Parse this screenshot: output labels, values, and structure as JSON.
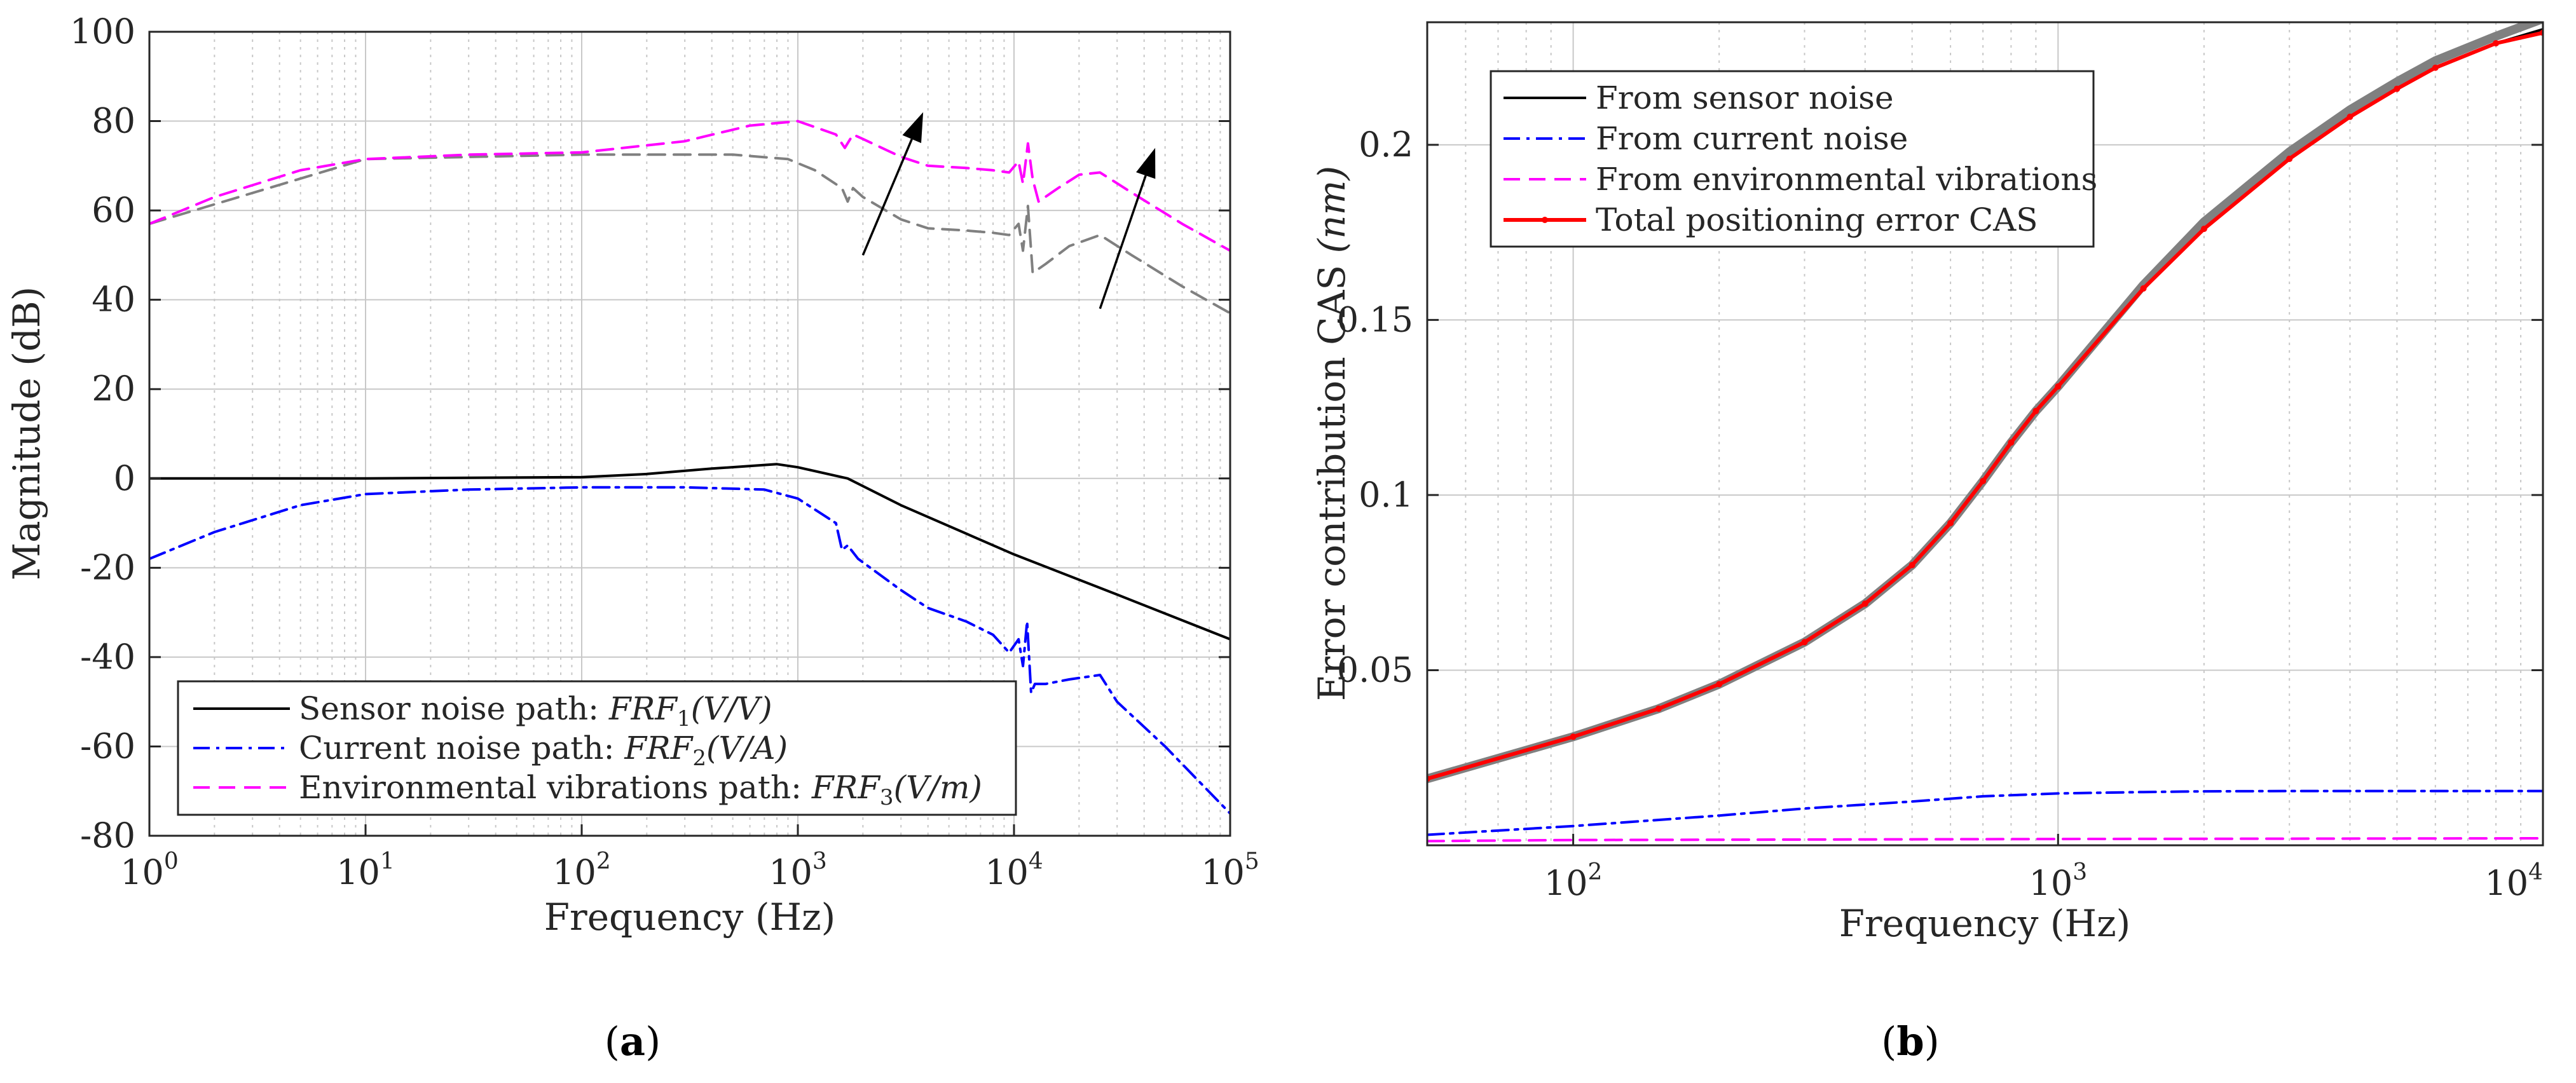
{
  "colors": {
    "sensor": "#000000",
    "current": "#0000ff",
    "environment": "#ff00ff",
    "reference": "#808080",
    "total": "#ff0000",
    "arrow": "#000000",
    "grid": "#c8c8c8",
    "axis": "#262626"
  },
  "chart_data": [
    {
      "id": "a",
      "panel_label": "a",
      "type": "line",
      "title": "",
      "xlabel": "Frequency (Hz)",
      "ylabel": "Magnitude (dB)",
      "xscale": "log",
      "xlim": [
        1,
        100000
      ],
      "ylim": [
        -80,
        100
      ],
      "grid": true,
      "xticks": [
        {
          "base": "10",
          "exp": "0"
        },
        {
          "base": "10",
          "exp": "1"
        },
        {
          "base": "10",
          "exp": "2"
        },
        {
          "base": "10",
          "exp": "3"
        },
        {
          "base": "10",
          "exp": "4"
        },
        {
          "base": "10",
          "exp": "5"
        }
      ],
      "yticks": [
        "-80",
        "-60",
        "-40",
        "-20",
        "0",
        "20",
        "40",
        "60",
        "80",
        "100"
      ],
      "legend_position": "bottom-right",
      "legend": [
        {
          "series": "sensor",
          "text": "Sensor noise path: ",
          "math": "FRF",
          "sub": "1",
          "unit": "(V/V)"
        },
        {
          "series": "current",
          "text": "Current noise path: ",
          "math": "FRF",
          "sub": "2",
          "unit": "(V/A)"
        },
        {
          "series": "environment",
          "text": "Environmental vibrations path: ",
          "math": "FRF",
          "sub": "3",
          "unit": "(V/m)"
        }
      ],
      "series": [
        {
          "key": "sensor",
          "name": "Sensor noise path: FRF1(V/V)",
          "style": "solid",
          "x": [
            1,
            10,
            100,
            200,
            400,
            800,
            1000,
            1700,
            3000,
            10000,
            30000,
            100000
          ],
          "y": [
            0,
            0,
            0.3,
            1,
            2.2,
            3.2,
            2.5,
            0,
            -6,
            -17,
            -26,
            -36
          ]
        },
        {
          "key": "current",
          "name": "Current noise path: FRF2(V/A)",
          "style": "dashdot",
          "x": [
            1,
            2,
            5,
            10,
            30,
            100,
            300,
            700,
            1000,
            1500,
            1600,
            1700,
            1900,
            3000,
            4000,
            6000,
            8000,
            9500,
            10500,
            11000,
            11500,
            12000,
            12500,
            14000,
            18000,
            25000,
            30000,
            50000,
            100000
          ],
          "y": [
            -18,
            -12,
            -6,
            -3.5,
            -2.5,
            -2,
            -2,
            -2.5,
            -4.5,
            -10,
            -16,
            -15,
            -18,
            -25,
            -29,
            -32,
            -35,
            -39,
            -36,
            -42,
            -32,
            -48,
            -46,
            -46,
            -45,
            -44,
            -50,
            -60,
            -75
          ]
        },
        {
          "key": "environment",
          "name": "Environmental vibrations path: FRF3(V/m)",
          "style": "dashed",
          "x": [
            1,
            2,
            5,
            10,
            30,
            100,
            300,
            600,
            1000,
            1500,
            1650,
            1800,
            2000,
            3000,
            4000,
            6000,
            8000,
            9500,
            10500,
            11000,
            11600,
            12200,
            13000,
            16000,
            20000,
            25000,
            35000,
            60000,
            100000
          ],
          "y": [
            57,
            63,
            69,
            71.5,
            72.5,
            73,
            75.5,
            79,
            80,
            77,
            74,
            77,
            76,
            72,
            70,
            69.5,
            69,
            68.5,
            71,
            66,
            75,
            67,
            62,
            65,
            68,
            68.5,
            64,
            57,
            51
          ]
        },
        {
          "key": "reference",
          "name": "",
          "style": "dashed",
          "x": [
            1,
            10,
            100,
            200,
            500,
            900,
            1200,
            1600,
            1700,
            1800,
            2000,
            3000,
            4000,
            6000,
            8000,
            9500,
            10500,
            11000,
            11600,
            12200,
            14000,
            18000,
            25000,
            35000,
            60000,
            100000
          ],
          "y": [
            57,
            71.5,
            72.5,
            72.5,
            72.5,
            71.5,
            69,
            65,
            62,
            65,
            63,
            58,
            56,
            55.5,
            55,
            54.5,
            57,
            51,
            61,
            46,
            48,
            52,
            54.5,
            50,
            43,
            37
          ]
        }
      ],
      "arrows": [
        {
          "from": [
            2000,
            50
          ],
          "to": [
            3800,
            82
          ]
        },
        {
          "from": [
            25000,
            38
          ],
          "to": [
            45000,
            74
          ]
        }
      ]
    },
    {
      "id": "b",
      "panel_label": "b",
      "type": "line",
      "title": "",
      "xlabel": "Frequency (Hz)",
      "ylabel": "Error contribution CAS ",
      "ylabel_unit": "(nm)",
      "xscale": "log",
      "xlim": [
        50,
        10000
      ],
      "ylim": [
        0,
        0.235
      ],
      "grid": true,
      "xticks": [
        {
          "base": "10",
          "exp": "2",
          "value": 100
        },
        {
          "base": "10",
          "exp": "3",
          "value": 1000
        },
        {
          "base": "10",
          "exp": "4",
          "value": 10000
        }
      ],
      "yticks": [
        {
          "label": "0.05",
          "value": 0.05
        },
        {
          "label": "0.1",
          "value": 0.1
        },
        {
          "label": "0.15",
          "value": 0.15
        },
        {
          "label": "0.2",
          "value": 0.2
        }
      ],
      "legend_position": "top-left",
      "legend": [
        {
          "series": "sensor",
          "text": "From sensor noise"
        },
        {
          "series": "current",
          "text": "From current noise"
        },
        {
          "series": "environment",
          "text": "From environmental vibrations"
        },
        {
          "series": "total",
          "text": "Total positioning error CAS"
        }
      ],
      "series": [
        {
          "key": "reference",
          "name": "",
          "style": "solid-thick",
          "x": [
            50,
            100,
            150,
            200,
            300,
            400,
            500,
            600,
            700,
            800,
            900,
            1000,
            1500,
            2000,
            3000,
            4000,
            5000,
            6000,
            8000,
            10000
          ],
          "y": [
            0.019,
            0.031,
            0.039,
            0.046,
            0.058,
            0.069,
            0.08,
            0.092,
            0.104,
            0.115,
            0.124,
            0.131,
            0.16,
            0.178,
            0.198,
            0.21,
            0.218,
            0.224,
            0.231,
            0.236
          ]
        },
        {
          "key": "sensor",
          "name": "From sensor noise",
          "style": "solid",
          "x": [
            50,
            100,
            150,
            200,
            300,
            400,
            500,
            600,
            700,
            800,
            900,
            1000,
            1500,
            2000,
            3000,
            4000,
            5000,
            6000,
            8000,
            10000
          ],
          "y": [
            0.019,
            0.031,
            0.039,
            0.046,
            0.058,
            0.069,
            0.08,
            0.092,
            0.104,
            0.115,
            0.124,
            0.131,
            0.159,
            0.176,
            0.196,
            0.208,
            0.216,
            0.222,
            0.229,
            0.233
          ]
        },
        {
          "key": "total",
          "name": "Total positioning error CAS",
          "style": "solid-red",
          "x": [
            50,
            100,
            150,
            200,
            300,
            400,
            500,
            600,
            700,
            800,
            900,
            1000,
            1500,
            2000,
            3000,
            4000,
            5000,
            6000,
            8000,
            10000
          ],
          "y": [
            0.019,
            0.031,
            0.039,
            0.046,
            0.058,
            0.069,
            0.08,
            0.092,
            0.104,
            0.115,
            0.124,
            0.131,
            0.159,
            0.176,
            0.196,
            0.208,
            0.216,
            0.222,
            0.229,
            0.232
          ]
        },
        {
          "key": "current",
          "name": "From current noise",
          "style": "dashdot",
          "x": [
            50,
            100,
            200,
            300,
            500,
            700,
            1000,
            1500,
            2000,
            3000,
            5000,
            10000
          ],
          "y": [
            0.003,
            0.0055,
            0.0085,
            0.0105,
            0.0125,
            0.014,
            0.0148,
            0.0152,
            0.0154,
            0.0155,
            0.0155,
            0.0155
          ]
        },
        {
          "key": "environment",
          "name": "From environmental vibrations",
          "style": "dashed",
          "x": [
            50,
            100,
            1000,
            10000
          ],
          "y": [
            0.0012,
            0.0015,
            0.0018,
            0.002
          ]
        }
      ]
    }
  ]
}
